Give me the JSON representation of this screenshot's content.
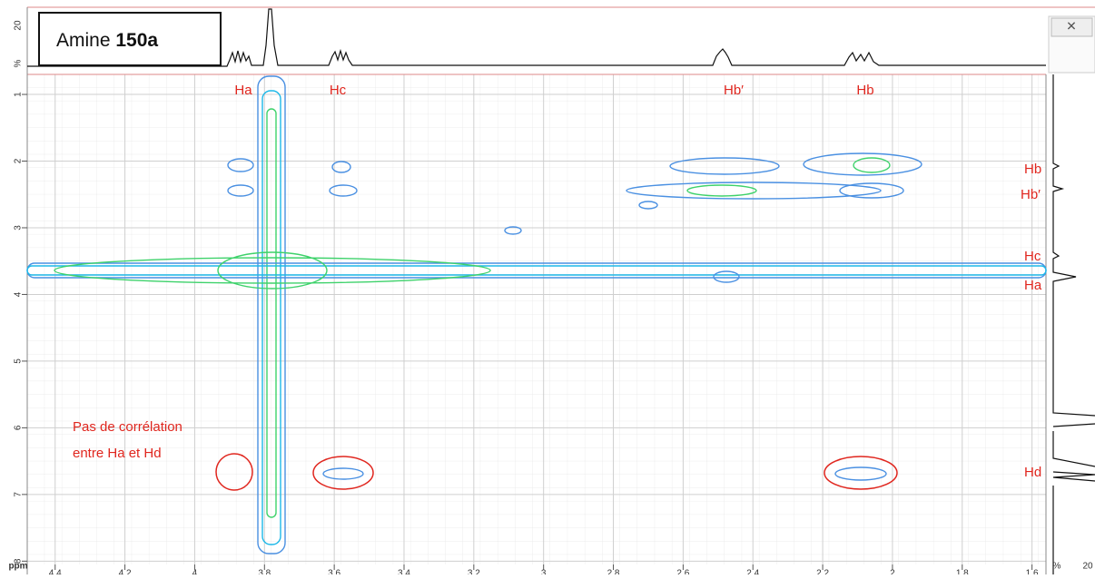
{
  "chart_data": {
    "type": "contour",
    "title": "Amine",
    "title_bold": "150a",
    "x_unit_label": "ppm",
    "xlim": [
      4.48,
      1.56
    ],
    "xticks": [
      4.4,
      4.2,
      4,
      3.8,
      3.6,
      3.4,
      3.2,
      3,
      2.8,
      2.6,
      2.4,
      2.2,
      2,
      1.8,
      1.6
    ],
    "ylim": [
      0.7,
      8.05
    ],
    "yticks": [
      1,
      2,
      3,
      4,
      5,
      6,
      7,
      8
    ],
    "top_trace_ticks": [
      "20",
      "%"
    ],
    "right_trace_ticks": [
      "%",
      "20"
    ],
    "top_labels": [
      "Ha",
      "Hc",
      "Hb′",
      "Hb"
    ],
    "side_labels": [
      "Hb",
      "Hb′",
      "Hc",
      "Ha",
      "Hd"
    ],
    "annotation": [
      "Pas de corrélation",
      "entre Ha et Hd"
    ],
    "grid": true
  }
}
